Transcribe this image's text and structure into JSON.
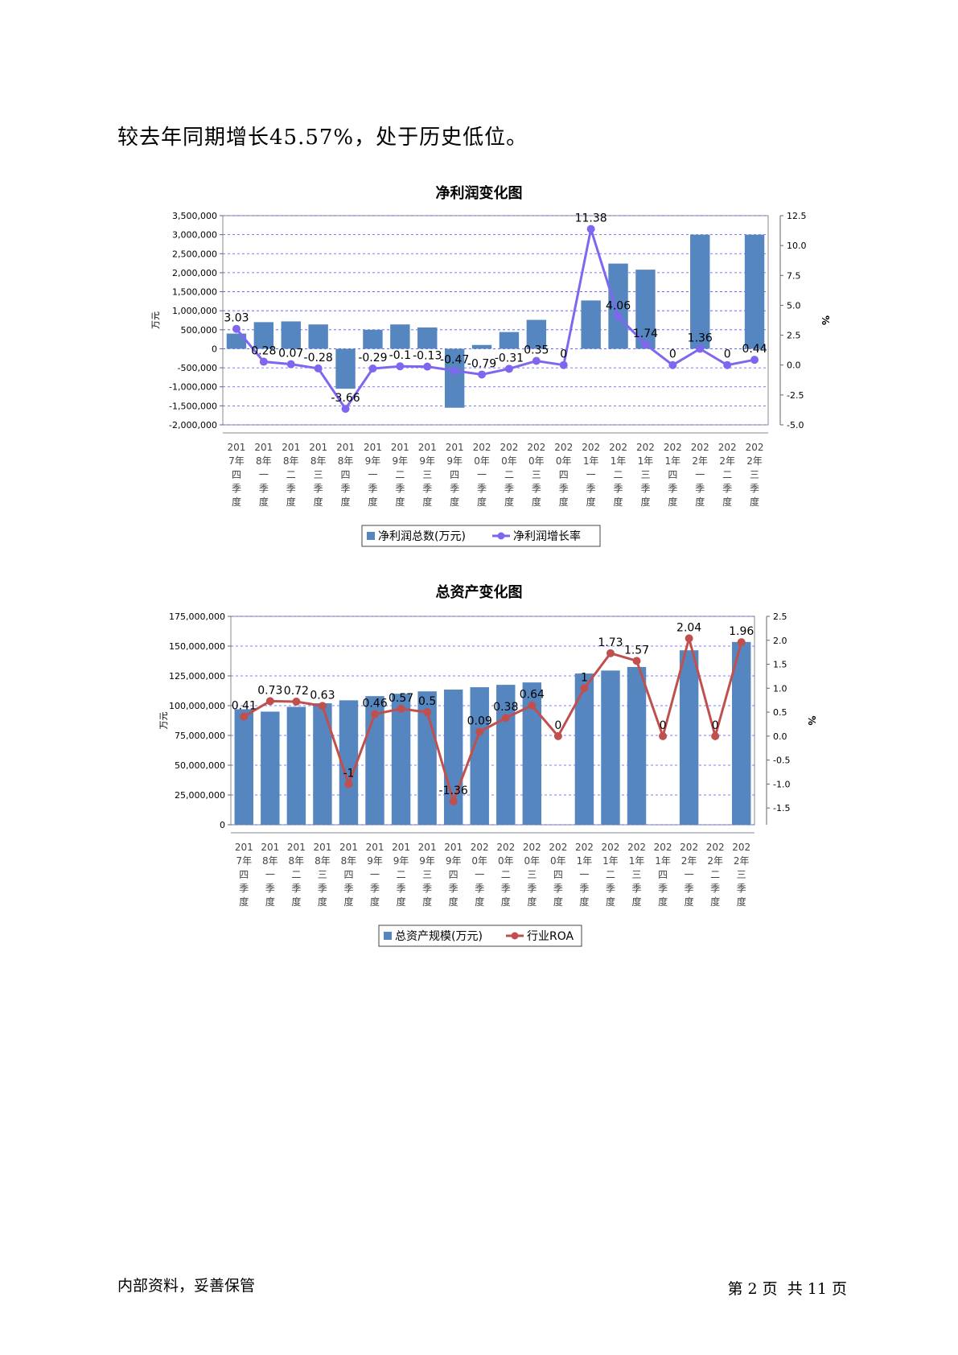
{
  "lead_text": "较去年同期增长45.57%，处于历史低位。",
  "footer": {
    "left": "内部资料，妥善保管",
    "right": "第 2 页  共 11 页"
  },
  "colors": {
    "bar": "#5686bf",
    "line1": "#8066ee",
    "line2": "#c0504d",
    "grid": "#5050ff"
  },
  "chart_data": [
    {
      "type": "bar+line",
      "title": "净利润变化图",
      "categories": [
        "2017年四季度",
        "2018年一季度",
        "2018年二季度",
        "2018年三季度",
        "2018年四季度",
        "2019年一季度",
        "2019年二季度",
        "2019年三季度",
        "2019年四季度",
        "2020年一季度",
        "2020年二季度",
        "2020年三季度",
        "2020年四季度",
        "2021年一季度",
        "2021年二季度",
        "2021年三季度",
        "2021年四季度",
        "2022年一季度",
        "2022年二季度",
        "2022年三季度"
      ],
      "tick_labels": [
        [
          "201",
          "7年",
          "四",
          "季",
          "度"
        ],
        [
          "201",
          "8年",
          "一",
          "季",
          "度"
        ],
        [
          "201",
          "8年",
          "二",
          "季",
          "度"
        ],
        [
          "201",
          "8年",
          "三",
          "季",
          "度"
        ],
        [
          "201",
          "8年",
          "四",
          "季",
          "度"
        ],
        [
          "201",
          "9年",
          "一",
          "季",
          "度"
        ],
        [
          "201",
          "9年",
          "二",
          "季",
          "度"
        ],
        [
          "201",
          "9年",
          "三",
          "季",
          "度"
        ],
        [
          "201",
          "9年",
          "四",
          "季",
          "度"
        ],
        [
          "202",
          "0年",
          "一",
          "季",
          "度"
        ],
        [
          "202",
          "0年",
          "二",
          "季",
          "度"
        ],
        [
          "202",
          "0年",
          "三",
          "季",
          "度"
        ],
        [
          "202",
          "0年",
          "四",
          "季",
          "度"
        ],
        [
          "202",
          "1年",
          "一",
          "季",
          "度"
        ],
        [
          "202",
          "1年",
          "二",
          "季",
          "度"
        ],
        [
          "202",
          "1年",
          "三",
          "季",
          "度"
        ],
        [
          "202",
          "1年",
          "四",
          "季",
          "度"
        ],
        [
          "202",
          "2年",
          "一",
          "季",
          "度"
        ],
        [
          "202",
          "2年",
          "二",
          "季",
          "度"
        ],
        [
          "202",
          "2年",
          "三",
          "季",
          "度"
        ]
      ],
      "bar_series": {
        "name": "净利润总数(万元)",
        "values": [
          400000,
          700000,
          720000,
          640000,
          -1050000,
          500000,
          640000,
          560000,
          -1550000,
          100000,
          440000,
          760000,
          0,
          1270000,
          2240000,
          2080000,
          0,
          3000000,
          0,
          3000000
        ]
      },
      "line_series": {
        "name": "净利润增长率",
        "values": [
          3.03,
          0.28,
          0.07,
          -0.28,
          -3.66,
          -0.29,
          -0.1,
          -0.13,
          -0.47,
          -0.79,
          -0.31,
          0.35,
          0,
          11.38,
          4.06,
          1.74,
          0,
          1.36,
          0,
          0.44
        ],
        "labels": [
          "3.03",
          "0.28",
          "0.07",
          "-0.28",
          "-3.66",
          "-0.29",
          "-0.1",
          "-0.13",
          "-0.47",
          "-0.79",
          "-0.31",
          "0.35",
          "0",
          "11.38",
          "4.06",
          "1.74",
          "0",
          "1.36",
          "0",
          "0.44"
        ]
      },
      "ylabel_left": "万元",
      "ylabel_right": "%",
      "ylim_left": [
        -2000000,
        3500000
      ],
      "yticks_left": [
        3500000,
        3000000,
        2500000,
        2000000,
        1500000,
        1000000,
        500000,
        0,
        -500000,
        -1000000,
        -1500000,
        -2000000
      ],
      "ytick_labels_left": [
        "3,500,000",
        "3,000,000",
        "2,500,000",
        "2,000,000",
        "1,500,000",
        "1,000,000",
        "500,000",
        "0",
        "-500,000",
        "-1,000,000",
        "-1,500,000",
        "-2,000,000"
      ],
      "ylim_right": [
        -5.0,
        12.5
      ],
      "yticks_right": [
        12.5,
        10.0,
        7.5,
        5.0,
        2.5,
        0.0,
        -2.5,
        -5.0
      ],
      "ytick_labels_right": [
        "12.5",
        "10.0",
        "7.5",
        "5.0",
        "2.5",
        "0.0",
        "-2.5",
        "-5.0"
      ],
      "grid": true,
      "legend_position": "bottom"
    },
    {
      "type": "bar+line",
      "title": "总资产变化图",
      "categories": [
        "2017年四季度",
        "2018年一季度",
        "2018年二季度",
        "2018年三季度",
        "2018年四季度",
        "2019年一季度",
        "2019年二季度",
        "2019年三季度",
        "2019年四季度",
        "2020年一季度",
        "2020年二季度",
        "2020年三季度",
        "2020年四季度",
        "2021年一季度",
        "2021年二季度",
        "2021年三季度",
        "2021年四季度",
        "2022年一季度",
        "2022年二季度",
        "2022年三季度"
      ],
      "tick_labels": [
        [
          "201",
          "7年",
          "四",
          "季",
          "度"
        ],
        [
          "201",
          "8年",
          "一",
          "季",
          "度"
        ],
        [
          "201",
          "8年",
          "二",
          "季",
          "度"
        ],
        [
          "201",
          "8年",
          "三",
          "季",
          "度"
        ],
        [
          "201",
          "8年",
          "四",
          "季",
          "度"
        ],
        [
          "201",
          "9年",
          "一",
          "季",
          "度"
        ],
        [
          "201",
          "9年",
          "二",
          "季",
          "度"
        ],
        [
          "201",
          "9年",
          "三",
          "季",
          "度"
        ],
        [
          "201",
          "9年",
          "四",
          "季",
          "度"
        ],
        [
          "202",
          "0年",
          "一",
          "季",
          "度"
        ],
        [
          "202",
          "0年",
          "二",
          "季",
          "度"
        ],
        [
          "202",
          "0年",
          "三",
          "季",
          "度"
        ],
        [
          "202",
          "0年",
          "四",
          "季",
          "度"
        ],
        [
          "202",
          "1年",
          "一",
          "季",
          "度"
        ],
        [
          "202",
          "1年",
          "二",
          "季",
          "度"
        ],
        [
          "202",
          "1年",
          "三",
          "季",
          "度"
        ],
        [
          "202",
          "1年",
          "四",
          "季",
          "度"
        ],
        [
          "202",
          "2年",
          "一",
          "季",
          "度"
        ],
        [
          "202",
          "2年",
          "二",
          "季",
          "度"
        ],
        [
          "202",
          "2年",
          "三",
          "季",
          "度"
        ]
      ],
      "bar_series": {
        "name": "总资产规模(万元)",
        "values": [
          97000000,
          95000000,
          99000000,
          102000000,
          104500000,
          108000000,
          110000000,
          112000000,
          113500000,
          115500000,
          117500000,
          119500000,
          0,
          127000000,
          129500000,
          132500000,
          0,
          146500000,
          0,
          153500000
        ]
      },
      "line_series": {
        "name": "行业ROA",
        "values": [
          0.41,
          0.73,
          0.72,
          0.63,
          -1,
          0.46,
          0.57,
          0.5,
          -1.36,
          0.09,
          0.38,
          0.64,
          0,
          1,
          1.73,
          1.57,
          0,
          2.04,
          0,
          1.96
        ],
        "labels": [
          "0.41",
          "0.73",
          "0.72",
          "0.63",
          "-1",
          "0.46",
          "0.57",
          "0.5",
          "-1.36",
          "0.09",
          "0.38",
          "0.64",
          "0",
          "1",
          "1.73",
          "1.57",
          "0",
          "2.04",
          "0",
          "1.96"
        ]
      },
      "ylabel_left": "万元",
      "ylabel_right": "%",
      "ylim_left": [
        0,
        175000000
      ],
      "yticks_left": [
        175000000,
        150000000,
        125000000,
        100000000,
        75000000,
        50000000,
        25000000,
        0
      ],
      "ytick_labels_left": [
        "175,000,000",
        "150,000,000",
        "125,000,000",
        "100,000,000",
        "75,000,000",
        "50,000,000",
        "25,000,000",
        "0"
      ],
      "ylim_right": [
        -1.85,
        2.5
      ],
      "yticks_right": [
        2.5,
        2.0,
        1.5,
        1.0,
        0.5,
        0.0,
        -0.5,
        -1.0,
        -1.5
      ],
      "ytick_labels_right": [
        "2.5",
        "2.0",
        "1.5",
        "1.0",
        "0.5",
        "0.0",
        "-0.5",
        "-1.0",
        "-1.5"
      ],
      "grid": true,
      "legend_position": "bottom"
    }
  ]
}
